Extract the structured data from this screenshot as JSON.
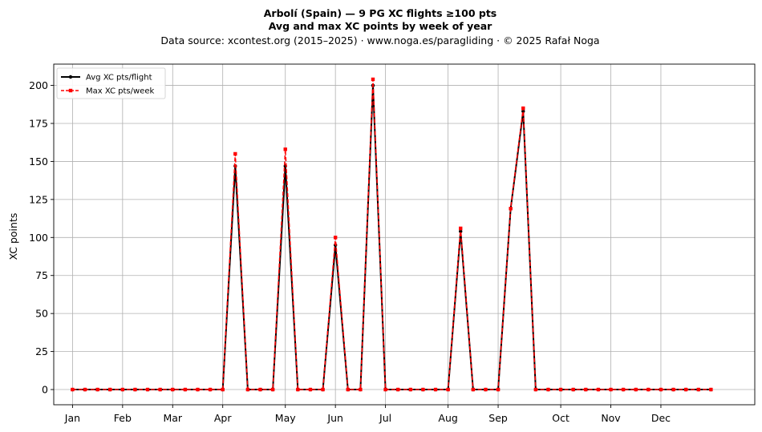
{
  "chart_data": {
    "type": "line",
    "title_line1": "Arbolí (Spain)  —  9 PG XC flights ≥100 pts",
    "title_line2": "Avg and max XC points by week of year",
    "subtitle": "Data source: xcontest.org (2015–2025)  ·  www.noga.es/paragliding  ·  © 2025 Rafał Noga",
    "xlabel": "",
    "ylabel": "XC points",
    "ylim": [
      -10,
      214
    ],
    "xlim": [
      -1.5,
      54.5
    ],
    "yticks": [
      0,
      25,
      50,
      75,
      100,
      125,
      150,
      175,
      200
    ],
    "xticks": [
      {
        "label": "Jan",
        "week": 0
      },
      {
        "label": "Feb",
        "week": 4
      },
      {
        "label": "Mar",
        "week": 8
      },
      {
        "label": "Apr",
        "week": 12
      },
      {
        "label": "May",
        "week": 17
      },
      {
        "label": "Jun",
        "week": 21
      },
      {
        "label": "Jul",
        "week": 25
      },
      {
        "label": "Aug",
        "week": 30
      },
      {
        "label": "Sep",
        "week": 34
      },
      {
        "label": "Oct",
        "week": 39
      },
      {
        "label": "Nov",
        "week": 43
      },
      {
        "label": "Dec",
        "week": 47
      }
    ],
    "grid": true,
    "legend_position": "upper-left",
    "x": [
      0,
      1,
      2,
      3,
      4,
      5,
      6,
      7,
      8,
      9,
      10,
      11,
      12,
      13,
      14,
      15,
      16,
      17,
      18,
      19,
      20,
      21,
      22,
      23,
      24,
      25,
      26,
      27,
      28,
      29,
      30,
      31,
      32,
      33,
      34,
      35,
      36,
      37,
      38,
      39,
      40,
      41,
      42,
      43,
      44,
      45,
      46,
      47,
      48,
      49,
      50,
      51
    ],
    "series": [
      {
        "name": "Avg XC pts/flight",
        "color": "#000000",
        "values": [
          0,
          0,
          0,
          0,
          0,
          0,
          0,
          0,
          0,
          0,
          0,
          0,
          0,
          147,
          0,
          0,
          0,
          147,
          0,
          0,
          0,
          95,
          0,
          0,
          200,
          0,
          0,
          0,
          0,
          0,
          0,
          104,
          0,
          0,
          0,
          119,
          183,
          0,
          0,
          0,
          0,
          0,
          0,
          0,
          0,
          0,
          0,
          0,
          0,
          0,
          0,
          0
        ]
      },
      {
        "name": "Max XC pts/week",
        "color": "#ff0000",
        "values": [
          0,
          0,
          0,
          0,
          0,
          0,
          0,
          0,
          0,
          0,
          0,
          0,
          0,
          155,
          0,
          0,
          0,
          158,
          0,
          0,
          0,
          100,
          0,
          0,
          204,
          0,
          0,
          0,
          0,
          0,
          0,
          106,
          0,
          0,
          0,
          119,
          185,
          0,
          0,
          0,
          0,
          0,
          0,
          0,
          0,
          0,
          0,
          0,
          0,
          0,
          0,
          0
        ]
      }
    ]
  }
}
